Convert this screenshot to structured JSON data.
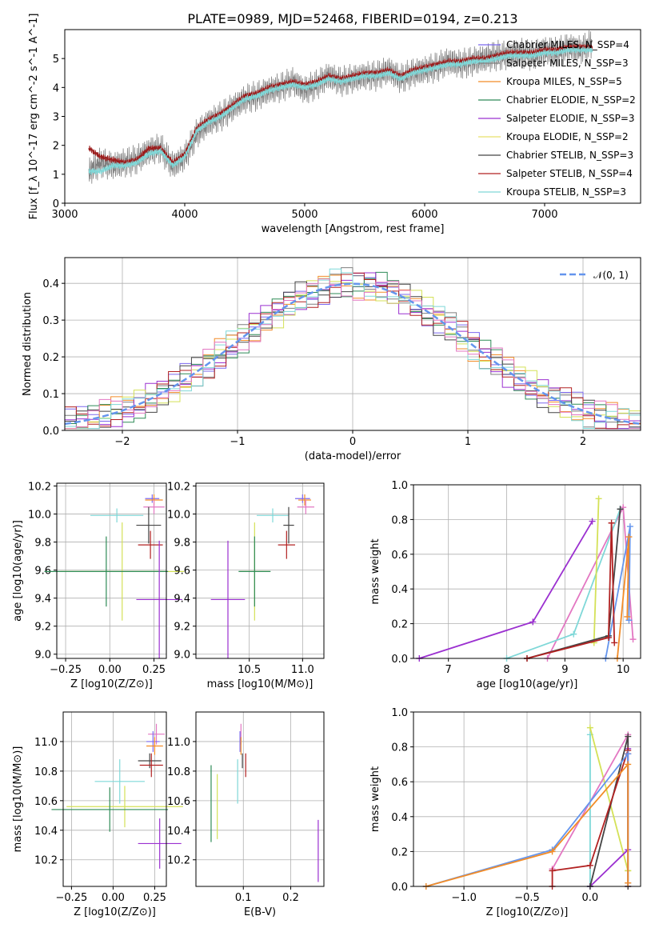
{
  "chart_data": [
    {
      "type": "line",
      "title": "PLATE=0989, MJD=52468, FIBERID=0194, z=0.213",
      "xlabel": "wavelength [Angstrom, rest frame]",
      "ylabel": "Flux [f_λ 10^-17 erg cm^-2 s^-1 A^-1]",
      "xlim": [
        3000,
        7800
      ],
      "ylim": [
        0,
        6
      ],
      "xticks": [
        3000,
        4000,
        5000,
        6000,
        7000
      ],
      "yticks": [
        0,
        1,
        2,
        3,
        4,
        5
      ],
      "grid": false,
      "legend_position": "top-right",
      "legend": [
        {
          "name": "Chabrier MILES, N_SSP=4",
          "color": "#7b68ee"
        },
        {
          "name": "Salpeter MILES, N_SSP=3",
          "color": "#7f7f7f"
        },
        {
          "name": "Kroupa MILES, N_SSP=5",
          "color": "#f28c28"
        },
        {
          "name": "Chabrier ELODIE, N_SSP=2",
          "color": "#2e8b57"
        },
        {
          "name": "Salpeter ELODIE, N_SSP=3",
          "color": "#9b30d0"
        },
        {
          "name": "Kroupa ELODIE, N_SSP=2",
          "color": "#e8e06a"
        },
        {
          "name": "Chabrier STELIB, N_SSP=3",
          "color": "#444444"
        },
        {
          "name": "Salpeter STELIB, N_SSP=4",
          "color": "#b22222"
        },
        {
          "name": "Kroupa STELIB, N_SSP=3",
          "color": "#7fd8d8"
        }
      ],
      "series": [
        {
          "color": "#808080",
          "x": [
            3200,
            3300,
            3400,
            3500,
            3600,
            3700,
            3800,
            3900,
            4000,
            4100,
            4200,
            4300,
            4400,
            4500,
            4600,
            4700,
            4800,
            4900,
            5000,
            5100,
            5200,
            5300,
            5400,
            5500,
            5600,
            5700,
            5800,
            5900,
            6000,
            6100,
            6200,
            6300,
            6400,
            6500,
            6600,
            6700,
            6800,
            6900,
            7000,
            7100,
            7200,
            7300,
            7400
          ],
          "y": [
            1.1,
            1.4,
            1.3,
            1.4,
            1.5,
            1.8,
            1.9,
            1.3,
            1.6,
            2.4,
            2.8,
            3.0,
            3.3,
            3.6,
            3.7,
            3.9,
            4.0,
            4.2,
            3.9,
            4.1,
            4.4,
            4.2,
            4.3,
            4.4,
            4.4,
            4.6,
            4.3,
            4.5,
            4.6,
            4.7,
            4.9,
            4.8,
            4.9,
            5.0,
            5.1,
            5.1,
            5.2,
            5.1,
            5.3,
            5.2,
            5.4,
            5.3,
            5.5
          ]
        },
        {
          "color": "#9b1c1c",
          "x": [
            3200,
            3300,
            3400,
            3500,
            3600,
            3700,
            3800,
            3900,
            4000,
            4100,
            4200,
            4300,
            4400,
            4500,
            4600,
            4700,
            4800,
            4900,
            5000,
            5100,
            5200,
            5300,
            5400,
            5500,
            5600,
            5700,
            5800,
            5900,
            6000,
            6100,
            6200,
            6300,
            6400,
            6500,
            6600,
            6700,
            6800,
            6900,
            7000,
            7100,
            7200,
            7300,
            7400
          ],
          "y": [
            1.9,
            1.6,
            1.5,
            1.4,
            1.5,
            1.9,
            1.9,
            1.4,
            1.7,
            2.6,
            2.9,
            3.1,
            3.4,
            3.7,
            3.8,
            4.0,
            4.1,
            4.2,
            4.1,
            4.2,
            4.4,
            4.3,
            4.4,
            4.5,
            4.5,
            4.6,
            4.4,
            4.6,
            4.7,
            4.8,
            4.9,
            4.9,
            5.0,
            5.0,
            5.1,
            5.2,
            5.2,
            5.2,
            5.3,
            5.3,
            5.4,
            5.4,
            5.4
          ]
        },
        {
          "color": "#7fd8d8",
          "x": [
            3200,
            3300,
            3400,
            3500,
            3600,
            3700,
            3800,
            3900,
            4000,
            4100,
            4200,
            4300,
            4400,
            4500,
            4600,
            4700,
            4800,
            4900,
            5000,
            5100,
            5200,
            5300,
            5400,
            5500,
            5600,
            5700,
            5800,
            5900,
            6000,
            6100,
            6200,
            6300,
            6400,
            6500,
            6600,
            6700,
            6800,
            6900,
            7000,
            7100,
            7200,
            7300,
            7400
          ],
          "y": [
            1.1,
            1.1,
            1.3,
            1.3,
            1.4,
            1.7,
            1.8,
            1.3,
            1.6,
            2.5,
            2.8,
            3.0,
            3.3,
            3.6,
            3.7,
            3.9,
            4.0,
            4.1,
            4.0,
            4.1,
            4.3,
            4.2,
            4.3,
            4.4,
            4.4,
            4.5,
            4.3,
            4.5,
            4.6,
            4.7,
            4.8,
            4.8,
            4.9,
            4.9,
            5.0,
            5.1,
            5.1,
            5.1,
            5.2,
            5.2,
            5.3,
            5.3,
            5.3
          ]
        }
      ]
    },
    {
      "type": "line",
      "xlabel": "(data-model)/error",
      "ylabel": "Normed distribution",
      "xlim": [
        -2.5,
        2.5
      ],
      "ylim": [
        0,
        0.47
      ],
      "xticks": [
        -2,
        -1,
        0,
        1,
        2
      ],
      "yticks": [
        0.0,
        0.1,
        0.2,
        0.3,
        0.4
      ],
      "grid": true,
      "legend_position": "top-right",
      "legend": [
        {
          "name": "𝒩(0, 1)",
          "color": "#6495ed"
        }
      ],
      "series_colors": [
        "#7b68ee",
        "#7f7f7f",
        "#f28c28",
        "#2e8b57",
        "#9b30d0",
        "#d4e157",
        "#444444",
        "#b22222",
        "#7fd8d8",
        "#e377c2"
      ]
    },
    {
      "type": "scatter",
      "xlabel": "Z [log10(Z/Z⊙)]",
      "ylabel": "age  [log10(age/yr)]",
      "xlim": [
        -0.3,
        0.32
      ],
      "ylim": [
        8.97,
        10.22
      ],
      "xticks": [
        -0.25,
        0.0,
        0.25
      ],
      "yticks": [
        9.0,
        9.2,
        9.4,
        9.6,
        9.8,
        10.0,
        10.2
      ],
      "grid": true,
      "points": [
        {
          "x": 0.24,
          "y": 10.11,
          "xerr": 0.04,
          "yerr": 0.03,
          "color": "#7b68ee"
        },
        {
          "x": 0.25,
          "y": 10.1,
          "xerr": 0.05,
          "yerr": 0.04,
          "color": "#f28c28"
        },
        {
          "x": 0.25,
          "y": 10.05,
          "xerr": 0.06,
          "yerr": 0.05,
          "color": "#e377c2"
        },
        {
          "x": 0.04,
          "y": 9.99,
          "xerr": 0.15,
          "yerr": 0.05,
          "color": "#7fd8d8"
        },
        {
          "x": 0.22,
          "y": 9.92,
          "xerr": 0.07,
          "yerr": 0.13,
          "color": "#444444"
        },
        {
          "x": 0.23,
          "y": 9.78,
          "xerr": 0.07,
          "yerr": 0.1,
          "color": "#b22222"
        },
        {
          "x": 0.07,
          "y": 9.59,
          "xerr": 0.35,
          "yerr": 0.35,
          "color": "#d4e157"
        },
        {
          "x": -0.02,
          "y": 9.59,
          "xerr": 0.35,
          "yerr": 0.25,
          "color": "#2e8b57"
        },
        {
          "x": 0.28,
          "y": 9.39,
          "xerr": 0.13,
          "yerr": 0.42,
          "color": "#9b30d0"
        }
      ]
    },
    {
      "type": "scatter",
      "xlabel": "mass [log10(M/M⊙)]",
      "xlim": [
        10.0,
        11.2
      ],
      "ylim": [
        8.97,
        10.22
      ],
      "xticks": [
        10.5,
        11.0
      ],
      "yticks": [
        9.0,
        9.2,
        9.4,
        9.6,
        9.8,
        10.0,
        10.2
      ],
      "grid": true,
      "points": [
        {
          "x": 11.0,
          "y": 10.11,
          "xerr": 0.07,
          "yerr": 0.03,
          "color": "#7b68ee"
        },
        {
          "x": 11.02,
          "y": 10.1,
          "xerr": 0.06,
          "yerr": 0.04,
          "color": "#f28c28"
        },
        {
          "x": 11.03,
          "y": 10.05,
          "xerr": 0.08,
          "yerr": 0.05,
          "color": "#e377c2"
        },
        {
          "x": 10.72,
          "y": 9.99,
          "xerr": 0.15,
          "yerr": 0.05,
          "color": "#7fd8d8"
        },
        {
          "x": 10.87,
          "y": 9.92,
          "xerr": 0.05,
          "yerr": 0.13,
          "color": "#444444"
        },
        {
          "x": 10.85,
          "y": 9.78,
          "xerr": 0.08,
          "yerr": 0.1,
          "color": "#b22222"
        },
        {
          "x": 10.55,
          "y": 9.59,
          "xerr": 0.14,
          "yerr": 0.35,
          "color": "#d4e157"
        },
        {
          "x": 10.55,
          "y": 9.59,
          "xerr": 0.15,
          "yerr": 0.25,
          "color": "#2e8b57"
        },
        {
          "x": 10.3,
          "y": 9.39,
          "xerr": 0.16,
          "yerr": 0.42,
          "color": "#9b30d0"
        }
      ]
    },
    {
      "type": "line",
      "xlabel": "age  [log10(age/yr)]",
      "ylabel": "mass weight",
      "xlim": [
        6.4,
        10.3
      ],
      "ylim": [
        0,
        1.0
      ],
      "xticks": [
        7,
        8,
        9,
        10
      ],
      "yticks": [
        0.0,
        0.2,
        0.4,
        0.6,
        0.8,
        1.0
      ],
      "grid": true,
      "series": [
        {
          "color": "#9b30d0",
          "x": [
            6.5,
            8.45,
            9.47
          ],
          "y": [
            0.0,
            0.21,
            0.79
          ]
        },
        {
          "color": "#e377c2",
          "x": [
            8.7,
            10.0,
            10.17
          ],
          "y": [
            0.0,
            0.87,
            0.11
          ]
        },
        {
          "color": "#7fd8d8",
          "x": [
            8.0,
            9.15,
            9.95
          ],
          "y": [
            0.0,
            0.14,
            0.86
          ]
        },
        {
          "color": "#6495ed",
          "x": [
            9.7,
            10.12,
            10.1
          ],
          "y": [
            0.0,
            0.76,
            0.22
          ]
        },
        {
          "color": "#f28c28",
          "x": [
            9.9,
            10.1,
            10.07
          ],
          "y": [
            0.0,
            0.7,
            0.24
          ]
        },
        {
          "color": "#d4e157",
          "x": [
            9.5,
            9.58,
            9.5
          ],
          "y": [
            0.09,
            0.92,
            0.09
          ]
        },
        {
          "color": "#444444",
          "x": [
            8.35,
            9.75,
            9.95
          ],
          "y": [
            0.0,
            0.13,
            0.86
          ]
        },
        {
          "color": "#b22222",
          "x": [
            8.35,
            9.75,
            9.8,
            9.85
          ],
          "y": [
            0.0,
            0.12,
            0.78,
            0.09
          ]
        }
      ]
    },
    {
      "type": "scatter",
      "xlabel": "Z [log10(Z/Z⊙)]",
      "ylabel": "mass [log10(M/M⊙)]",
      "xlim": [
        -0.3,
        0.32
      ],
      "ylim": [
        10.02,
        11.2
      ],
      "xticks": [
        -0.25,
        0.0,
        0.25
      ],
      "yticks": [
        10.2,
        10.4,
        10.6,
        10.8,
        11.0
      ],
      "grid": true,
      "points": [
        {
          "x": 0.26,
          "y": 11.05,
          "xerr": 0.05,
          "yerr": 0.07,
          "color": "#e377c2"
        },
        {
          "x": 0.24,
          "y": 11.0,
          "xerr": 0.04,
          "yerr": 0.07,
          "color": "#7b68ee"
        },
        {
          "x": 0.25,
          "y": 10.97,
          "xerr": 0.05,
          "yerr": 0.06,
          "color": "#f28c28"
        },
        {
          "x": 0.22,
          "y": 10.87,
          "xerr": 0.07,
          "yerr": 0.05,
          "color": "#444444"
        },
        {
          "x": 0.23,
          "y": 10.84,
          "xerr": 0.07,
          "yerr": 0.08,
          "color": "#b22222"
        },
        {
          "x": 0.04,
          "y": 10.73,
          "xerr": 0.15,
          "yerr": 0.15,
          "color": "#7fd8d8"
        },
        {
          "x": 0.07,
          "y": 10.56,
          "xerr": 0.35,
          "yerr": 0.14,
          "color": "#d4e157"
        },
        {
          "x": -0.02,
          "y": 10.54,
          "xerr": 0.35,
          "yerr": 0.15,
          "color": "#2e8b57"
        },
        {
          "x": 0.28,
          "y": 10.31,
          "xerr": 0.13,
          "yerr": 0.17,
          "color": "#9b30d0"
        }
      ]
    },
    {
      "type": "scatter",
      "xlabel": "E(B-V)",
      "xlim": [
        0.0,
        0.27
      ],
      "ylim": [
        10.02,
        11.2
      ],
      "xticks": [
        0.1,
        0.2
      ],
      "yticks": [
        10.2,
        10.4,
        10.6,
        10.8,
        11.0
      ],
      "grid": true,
      "points": [
        {
          "x": 0.095,
          "y": 11.05,
          "yerr": 0.07,
          "color": "#e377c2"
        },
        {
          "x": 0.093,
          "y": 11.0,
          "yerr": 0.07,
          "color": "#7b68ee"
        },
        {
          "x": 0.095,
          "y": 10.97,
          "yerr": 0.06,
          "color": "#f28c28"
        },
        {
          "x": 0.098,
          "y": 10.87,
          "yerr": 0.05,
          "color": "#444444"
        },
        {
          "x": 0.105,
          "y": 10.84,
          "yerr": 0.08,
          "color": "#b22222"
        },
        {
          "x": 0.088,
          "y": 10.73,
          "yerr": 0.15,
          "color": "#7fd8d8"
        },
        {
          "x": 0.045,
          "y": 10.56,
          "yerr": 0.22,
          "color": "#d4e157"
        },
        {
          "x": 0.032,
          "y": 10.58,
          "yerr": 0.26,
          "color": "#2e8b57"
        },
        {
          "x": 0.258,
          "y": 10.26,
          "yerr": 0.21,
          "color": "#9b30d0"
        }
      ]
    },
    {
      "type": "line",
      "xlabel": "Z [log10(Z/Z⊙)]",
      "ylabel": "mass weight",
      "xlim": [
        -1.4,
        0.4
      ],
      "ylim": [
        0,
        1.0
      ],
      "xticks": [
        -1.0,
        -0.5,
        0.0
      ],
      "yticks": [
        0.0,
        0.2,
        0.4,
        0.6,
        0.8,
        1.0
      ],
      "grid": true,
      "series": [
        {
          "color": "#7fd8d8",
          "x": [
            0.0,
            0.0
          ],
          "y": [
            0.0,
            0.87
          ]
        },
        {
          "color": "#d4e157",
          "x": [
            0.0,
            0.3,
            0.3
          ],
          "y": [
            0.91,
            0.09,
            0.09
          ]
        },
        {
          "color": "#e377c2",
          "x": [
            -0.3,
            0.3,
            0.3
          ],
          "y": [
            0.1,
            0.87,
            0.0
          ]
        },
        {
          "color": "#9b30d0",
          "x": [
            0.0,
            0.3,
            0.3
          ],
          "y": [
            0.0,
            0.21,
            0.79
          ]
        },
        {
          "color": "#444444",
          "x": [
            0.0,
            0.3,
            0.3
          ],
          "y": [
            0.0,
            0.86,
            0.0
          ]
        },
        {
          "color": "#b22222",
          "x": [
            -0.3,
            -0.3,
            0.0,
            0.3,
            0.3
          ],
          "y": [
            0.0,
            0.09,
            0.12,
            0.78,
            0.76
          ]
        },
        {
          "color": "#6495ed",
          "x": [
            -1.3,
            -0.3,
            0.3,
            0.3
          ],
          "y": [
            0.0,
            0.21,
            0.76,
            0.02
          ]
        },
        {
          "color": "#f28c28",
          "x": [
            -1.3,
            -0.3,
            0.3,
            0.3
          ],
          "y": [
            0.0,
            0.2,
            0.7,
            0.02
          ]
        }
      ]
    }
  ]
}
